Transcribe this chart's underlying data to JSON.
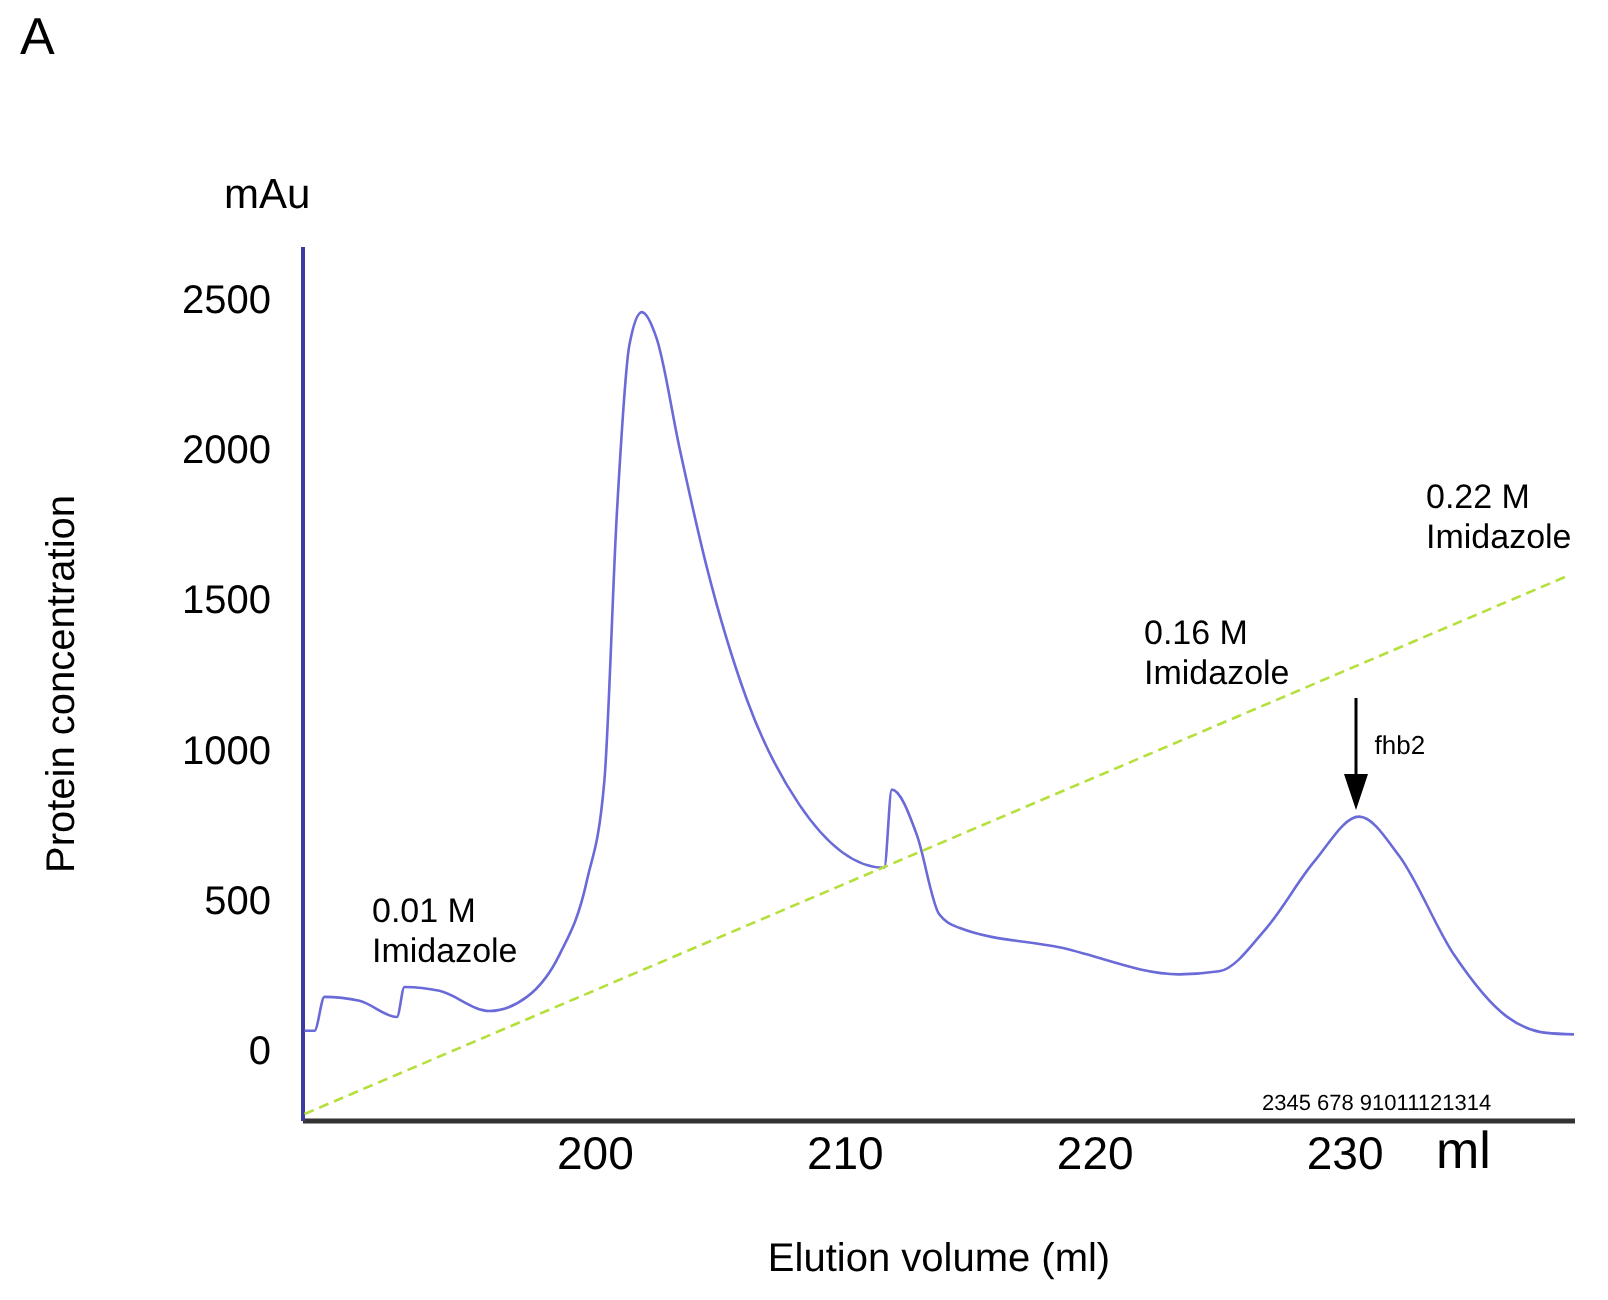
{
  "chart_data": {
    "type": "line",
    "xlabel": "Elution volume (ml)",
    "ylabel": "Protein concentration",
    "xlim": [
      188.3,
      239.2
    ],
    "xticks": [
      200,
      210,
      220,
      230
    ],
    "ylim": [
      -230,
      2680
    ],
    "yticks": [
      0,
      500,
      1000,
      1500,
      2000,
      2500
    ],
    "grid": false,
    "series": [
      {
        "color": "#6a6ad8",
        "line_style": "solid",
        "x": [
          188.4,
          188.8,
          189.2,
          190.6,
          192.1,
          192.4,
          193.8,
          195.8,
          197.3,
          198.6,
          199.7,
          200.4,
          200.9,
          201.4,
          201.9,
          202.5,
          203.4,
          204.5,
          206.1,
          208.2,
          211.6,
          211.9,
          212.9,
          213.8,
          214.6,
          218.6,
          223.4,
          225.0,
          226.9,
          228.8,
          230.6,
          232.2,
          234.4,
          236.5,
          238.1,
          239.2
        ],
        "values": [
          67,
          67,
          180,
          167,
          113,
          213,
          200,
          133,
          180,
          320,
          567,
          900,
          1790,
          2350,
          2460,
          2370,
          2010,
          1610,
          1170,
          820,
          610,
          870,
          720,
          455,
          410,
          345,
          255,
          265,
          410,
          630,
          780,
          650,
          320,
          115,
          60,
          55
        ]
      },
      {
        "color": "#b5e03c",
        "line_style": "dashed",
        "x": [
          188.4,
          238.9
        ],
        "values": [
          -210,
          1580
        ]
      }
    ],
    "annotations": [
      "A",
      "mAu",
      "ml",
      "2345 678 91011121314",
      "0.01 M\nImidazole",
      "0.16 M\nImidazole",
      "0.22 M\nImidazole",
      {
        "text": "fhb2",
        "x": 230.5,
        "y": 800
      }
    ]
  }
}
